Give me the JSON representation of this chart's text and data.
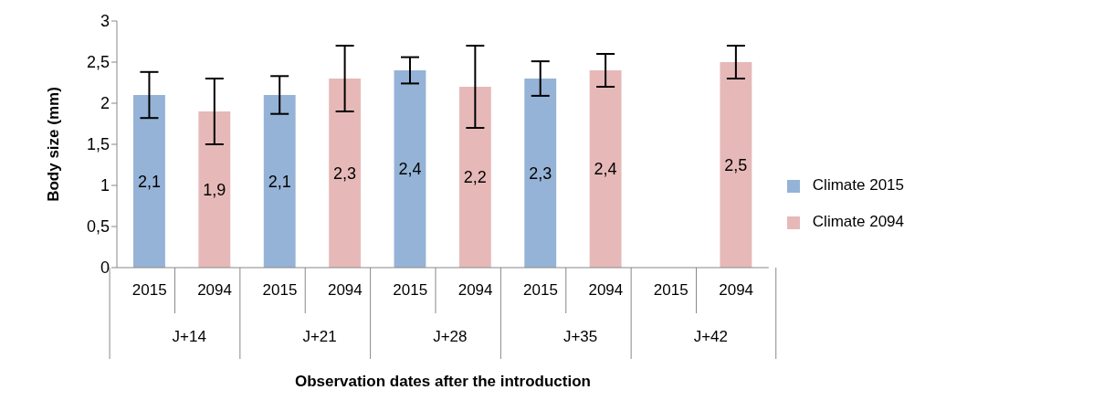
{
  "chart_data": {
    "type": "bar",
    "xlabel": "Observation dates after the introduction",
    "ylabel": "Body size (mm)",
    "categories": [
      "2015",
      "2094",
      "2015",
      "2094",
      "2015",
      "2094",
      "2015",
      "2094",
      "2015",
      "2094"
    ],
    "annotations": [
      "J+14",
      "J+21",
      "J+28",
      "J+35",
      "J+42"
    ],
    "series": [
      {
        "name": "Climate 2015",
        "color": "#95b3d7",
        "values": [
          2.1,
          null,
          2.1,
          null,
          2.4,
          null,
          2.3,
          null,
          null,
          null
        ],
        "value_labels": [
          "2,1",
          null,
          "2,1",
          null,
          "2,4",
          null,
          "2,3",
          null,
          null,
          null
        ],
        "errors": [
          [
            1.82,
            2.38
          ],
          null,
          [
            1.87,
            2.33
          ],
          null,
          [
            2.24,
            2.56
          ],
          null,
          [
            2.09,
            2.51
          ],
          null,
          null,
          null
        ]
      },
      {
        "name": "Climate 2094",
        "color": "#e6b9b8",
        "values": [
          null,
          1.9,
          null,
          2.3,
          null,
          2.2,
          null,
          2.4,
          null,
          2.5
        ],
        "value_labels": [
          null,
          "1,9",
          null,
          "2,3",
          null,
          "2,2",
          null,
          "2,4",
          null,
          "2,5"
        ],
        "errors": [
          null,
          [
            1.5,
            2.3
          ],
          null,
          [
            1.9,
            2.7
          ],
          null,
          [
            1.7,
            2.7
          ],
          null,
          [
            2.2,
            2.6
          ],
          null,
          [
            2.3,
            2.7
          ]
        ]
      }
    ],
    "ylim": [
      0,
      3
    ],
    "yticks": [
      0,
      {
        "value": 0.5,
        "label": "0,5"
      },
      1,
      {
        "value": 1.5,
        "label": "1,5"
      },
      2,
      {
        "value": 2.5,
        "label": "2,5"
      },
      3
    ],
    "grid": false,
    "legend": "right"
  }
}
